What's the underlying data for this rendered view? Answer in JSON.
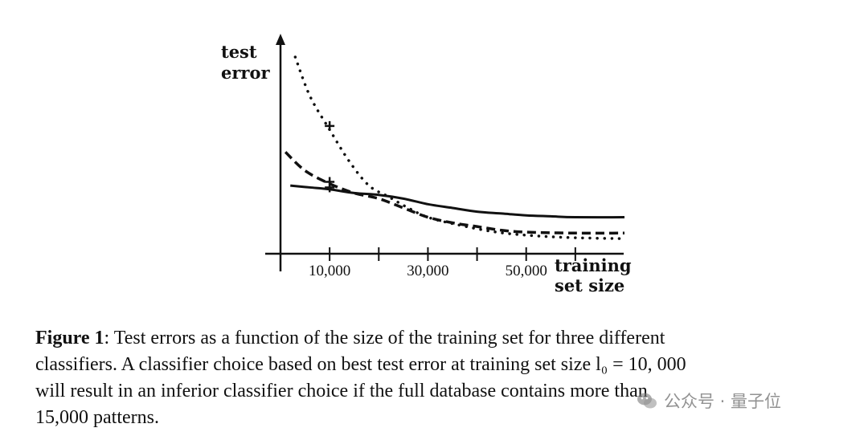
{
  "chart_data": {
    "type": "line",
    "ylabel_lines": [
      "test",
      "error"
    ],
    "xlabel_lines": [
      "training",
      "set size"
    ],
    "xlim": [
      0,
      70000
    ],
    "ylim": [
      0,
      1
    ],
    "x_ticks": [
      0,
      10000,
      20000,
      30000,
      40000,
      50000,
      60000
    ],
    "x_tick_labels": [
      {
        "x": 10000,
        "label": "10,000"
      },
      {
        "x": 30000,
        "label": "30,000"
      },
      {
        "x": 50000,
        "label": "50,000"
      }
    ],
    "markers": [
      {
        "x": 10000,
        "y": 0.66,
        "symbol": "+"
      },
      {
        "x": 10000,
        "y": 0.36,
        "symbol": "+"
      },
      {
        "x": 10000,
        "y": 0.33,
        "symbol": "+"
      }
    ],
    "series": [
      {
        "style": "dotted",
        "points": [
          [
            3000,
            1.03
          ],
          [
            6000,
            0.82
          ],
          [
            10000,
            0.64
          ],
          [
            14000,
            0.47
          ],
          [
            18000,
            0.34
          ],
          [
            22000,
            0.28
          ],
          [
            26000,
            0.22
          ],
          [
            30000,
            0.17
          ],
          [
            36000,
            0.13
          ],
          [
            44000,
            0.09
          ],
          [
            52000,
            0.07
          ],
          [
            60000,
            0.06
          ],
          [
            70000,
            0.055
          ]
        ]
      },
      {
        "style": "dashed",
        "points": [
          [
            1000,
            0.52
          ],
          [
            5000,
            0.42
          ],
          [
            10000,
            0.35
          ],
          [
            15000,
            0.3
          ],
          [
            20000,
            0.27
          ],
          [
            25000,
            0.22
          ],
          [
            30000,
            0.17
          ],
          [
            35000,
            0.14
          ],
          [
            40000,
            0.12
          ],
          [
            45000,
            0.1
          ],
          [
            50000,
            0.09
          ],
          [
            60000,
            0.085
          ],
          [
            70000,
            0.085
          ]
        ]
      },
      {
        "style": "solid",
        "points": [
          [
            2000,
            0.34
          ],
          [
            6000,
            0.33
          ],
          [
            10000,
            0.32
          ],
          [
            15000,
            0.3
          ],
          [
            20000,
            0.29
          ],
          [
            25000,
            0.27
          ],
          [
            30000,
            0.24
          ],
          [
            35000,
            0.22
          ],
          [
            40000,
            0.2
          ],
          [
            45000,
            0.19
          ],
          [
            50000,
            0.18
          ],
          [
            55000,
            0.175
          ],
          [
            60000,
            0.17
          ],
          [
            70000,
            0.17
          ]
        ]
      }
    ]
  },
  "caption": {
    "figure_label": "Figure 1",
    "lines": [
      ": Test errors as a function of the size of the training set for three different",
      "classifiers. A classifier choice based on best test error at training set size l₀ = 10, 000",
      "will result in an inferior classifier choice if the full database contains more than",
      "15,000 patterns."
    ]
  },
  "watermark": {
    "text": "公众号 · 量子位",
    "icon": "wechat-icon"
  }
}
